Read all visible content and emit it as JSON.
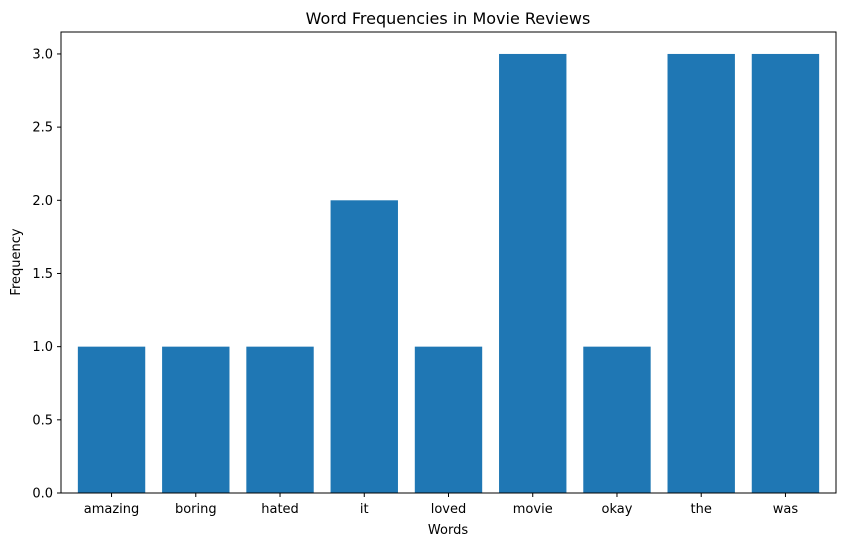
{
  "chart_data": {
    "type": "bar",
    "title": "Word Frequencies in Movie Reviews",
    "xlabel": "Words",
    "ylabel": "Frequency",
    "categories": [
      "amazing",
      "boring",
      "hated",
      "it",
      "loved",
      "movie",
      "okay",
      "the",
      "was"
    ],
    "values": [
      1,
      1,
      1,
      2,
      1,
      3,
      1,
      3,
      3
    ],
    "ylim": [
      0,
      3.15
    ],
    "yticks": [
      "0.0",
      "0.5",
      "1.0",
      "1.5",
      "2.0",
      "2.5",
      "3.0"
    ],
    "grid": false,
    "bar_color": "#1f77b4"
  }
}
